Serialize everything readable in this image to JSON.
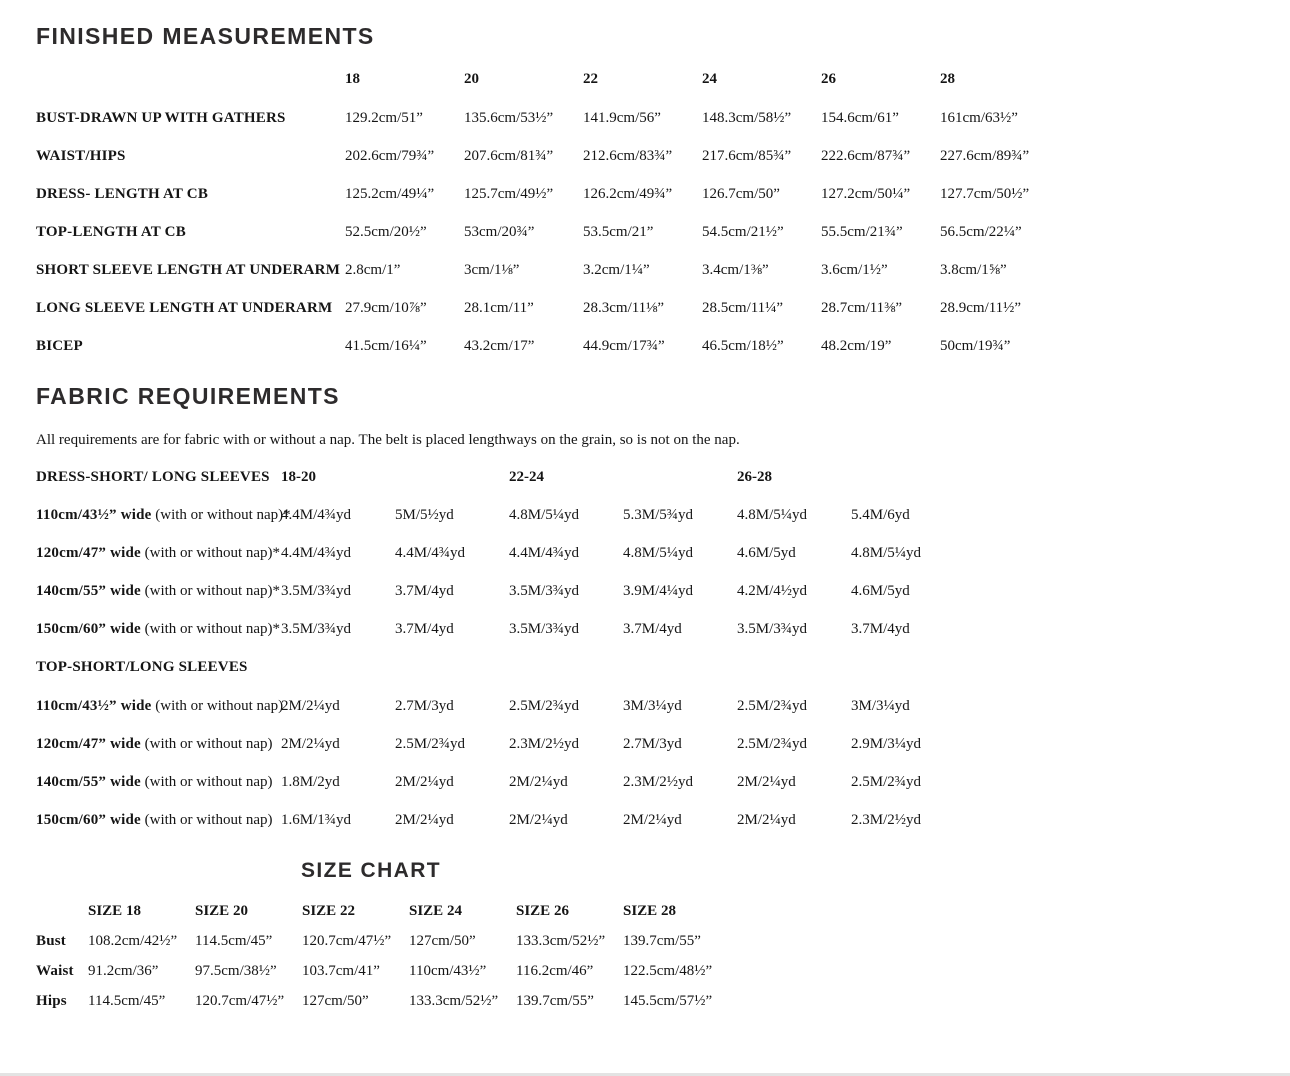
{
  "colors": {
    "heading": "#2d2b2c",
    "text": "#151515"
  },
  "finished_measurements": {
    "title": "FINISHED MEASUREMENTS",
    "sizes": [
      "18",
      "20",
      "22",
      "24",
      "26",
      "28"
    ],
    "rows": [
      {
        "label": "BUST-DRAWN UP WITH GATHERS",
        "values": [
          "129.2cm/51”",
          "135.6cm/53½”",
          "141.9cm/56”",
          "148.3cm/58½”",
          "154.6cm/61”",
          "161cm/63½”"
        ]
      },
      {
        "label": "WAIST/HIPS",
        "values": [
          "202.6cm/79¾”",
          "207.6cm/81¾”",
          "212.6cm/83¾”",
          "217.6cm/85¾”",
          "222.6cm/87¾”",
          "227.6cm/89¾”"
        ]
      },
      {
        "label": "DRESS- LENGTH AT CB",
        "values": [
          "125.2cm/49¼”",
          "125.7cm/49½”",
          "126.2cm/49¾”",
          "126.7cm/50”",
          "127.2cm/50¼”",
          "127.7cm/50½”"
        ]
      },
      {
        "label": "TOP-LENGTH AT CB",
        "values": [
          "52.5cm/20½”",
          "53cm/20¾”",
          "53.5cm/21”",
          "54.5cm/21½”",
          "55.5cm/21¾”",
          "56.5cm/22¼”"
        ]
      },
      {
        "label": "SHORT SLEEVE LENGTH AT UNDERARM",
        "values": [
          "2.8cm/1”",
          "3cm/1⅛”",
          "3.2cm/1¼”",
          "3.4cm/1⅜”",
          "3.6cm/1½”",
          "3.8cm/1⅝”"
        ]
      },
      {
        "label": "LONG SLEEVE LENGTH AT UNDERARM",
        "values": [
          "27.9cm/10⅞”",
          "28.1cm/11”",
          "28.3cm/11⅛”",
          "28.5cm/11¼”",
          "28.7cm/11⅜”",
          "28.9cm/11½”"
        ]
      },
      {
        "label": "BICEP",
        "values": [
          "41.5cm/16¼”",
          "43.2cm/17”",
          "44.9cm/17¾”",
          "46.5cm/18½”",
          "48.2cm/19”",
          "50cm/19¾”"
        ]
      }
    ]
  },
  "fabric_requirements": {
    "title": "FABRIC REQUIREMENTS",
    "note": "All requirements are for fabric with or without a nap. The belt is placed lengthways on the grain, so is not on the nap.",
    "groups": [
      "18-20",
      "22-24",
      "26-28"
    ],
    "dress": {
      "label": "DRESS-SHORT/ LONG SLEEVES",
      "rows": [
        {
          "w": "110cm/43½” wide",
          "nap": "(with or without nap)*",
          "values": [
            "4.4M/4¾yd",
            "5M/5½yd",
            "4.8M/5¼yd",
            "5.3M/5¾yd",
            "4.8M/5¼yd",
            "5.4M/6yd"
          ]
        },
        {
          "w": "120cm/47” wide",
          "nap": "(with or without nap)*",
          "values": [
            "4.4M/4¾yd",
            "4.4M/4¾yd",
            "4.4M/4¾yd",
            "4.8M/5¼yd",
            "4.6M/5yd",
            "4.8M/5¼yd"
          ]
        },
        {
          "w": "140cm/55” wide",
          "nap": "(with or without nap)*",
          "values": [
            "3.5M/3¾yd",
            "3.7M/4yd",
            "3.5M/3¾yd",
            "3.9M/4¼yd",
            "4.2M/4½yd",
            "4.6M/5yd"
          ]
        },
        {
          "w": "150cm/60” wide",
          "nap": "(with or without nap)*",
          "values": [
            "3.5M/3¾yd",
            "3.7M/4yd",
            "3.5M/3¾yd",
            "3.7M/4yd",
            "3.5M/3¾yd",
            "3.7M/4yd"
          ]
        }
      ]
    },
    "top": {
      "label": "TOP-SHORT/LONG SLEEVES",
      "rows": [
        {
          "w": "110cm/43½” wide",
          "nap": "(with or without nap)",
          "values": [
            "2M/2¼yd",
            "2.7M/3yd",
            "2.5M/2¾yd",
            "3M/3¼yd",
            "2.5M/2¾yd",
            "3M/3¼yd"
          ]
        },
        {
          "w": "120cm/47” wide",
          "nap": "(with or without nap)",
          "values": [
            "2M/2¼yd",
            "2.5M/2¾yd",
            "2.3M/2½yd",
            "2.7M/3yd",
            "2.5M/2¾yd",
            "2.9M/3¼yd"
          ]
        },
        {
          "w": "140cm/55” wide",
          "nap": "(with or without nap)",
          "values": [
            "1.8M/2yd",
            "2M/2¼yd",
            "2M/2¼yd",
            "2.3M/2½yd",
            "2M/2¼yd",
            "2.5M/2¾yd"
          ]
        },
        {
          "w": "150cm/60” wide",
          "nap": "(with or without nap)",
          "values": [
            "1.6M/1¾yd",
            "2M/2¼yd",
            "2M/2¼yd",
            "2M/2¼yd",
            "2M/2¼yd",
            "2.3M/2½yd"
          ]
        }
      ]
    }
  },
  "size_chart": {
    "title": "SIZE CHART",
    "columns": [
      "SIZE 18",
      "SIZE 20",
      "SIZE 22",
      "SIZE 24",
      "SIZE 26",
      "SIZE 28"
    ],
    "rows": [
      {
        "label": "Bust",
        "values": [
          "108.2cm/42½”",
          "114.5cm/45”",
          "120.7cm/47½”",
          "127cm/50”",
          "133.3cm/52½”",
          "139.7cm/55”"
        ]
      },
      {
        "label": "Waist",
        "values": [
          "91.2cm/36”",
          "97.5cm/38½”",
          "103.7cm/41”",
          "110cm/43½”",
          "116.2cm/46”",
          "122.5cm/48½”"
        ]
      },
      {
        "label": "Hips",
        "values": [
          "114.5cm/45”",
          "120.7cm/47½”",
          "127cm/50”",
          "133.3cm/52½”",
          "139.7cm/55”",
          "145.5cm/57½”"
        ]
      }
    ]
  }
}
